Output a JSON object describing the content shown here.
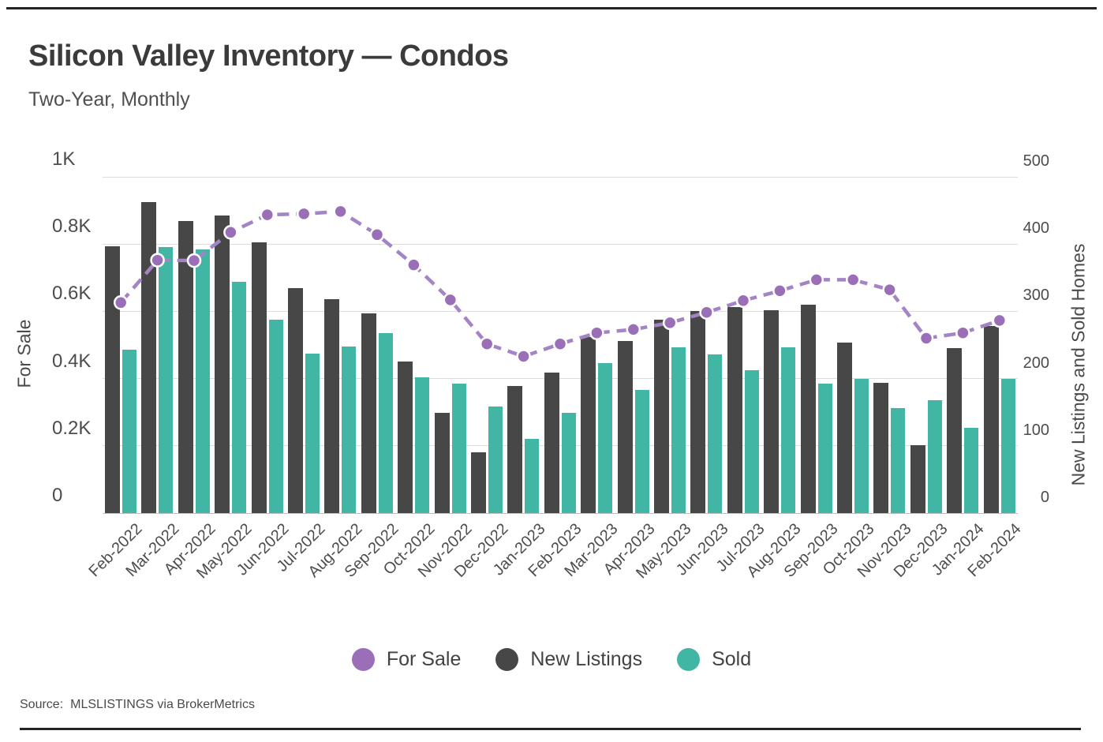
{
  "header": {
    "title": "Silicon Valley Inventory — Condos",
    "subtitle": "Two-Year, Monthly"
  },
  "source": {
    "label": "Source:",
    "text": "MLSLISTINGS via BrokerMetrics"
  },
  "colors": {
    "for_sale_marker": "#9a6fb8",
    "for_sale_line": "#a385c6",
    "new_listings_bar": "#474747",
    "sold_bar": "#42b6a5",
    "gridline": "#dcdcdc",
    "border_rule": "#232323"
  },
  "chart_data": {
    "type": "bar+line",
    "title": "Silicon Valley Inventory — Condos",
    "subtitle": "Two-Year, Monthly",
    "grid": true,
    "legend_position": "bottom",
    "categories": [
      "Feb-2022",
      "Mar-2022",
      "Apr-2022",
      "May-2022",
      "Jun-2022",
      "Jul-2022",
      "Aug-2022",
      "Sep-2022",
      "Oct-2022",
      "Nov-2022",
      "Dec-2022",
      "Jan-2023",
      "Feb-2023",
      "Mar-2023",
      "Apr-2023",
      "May-2023",
      "Jun-2023",
      "Jul-2023",
      "Aug-2023",
      "Sep-2023",
      "Oct-2023",
      "Nov-2023",
      "Dec-2023",
      "Jan-2024",
      "Feb-2024"
    ],
    "left_axis": {
      "title": "For Sale",
      "min": 0,
      "max": 1000,
      "ticks": [
        "0",
        "0.2K",
        "0.4K",
        "0.6K",
        "0.8K",
        "1K"
      ]
    },
    "right_axis": {
      "title": "New Listings and Sold Homes",
      "min": 0,
      "max": 500,
      "ticks": [
        "0",
        "100",
        "200",
        "300",
        "400",
        "500"
      ]
    },
    "series": [
      {
        "name": "For Sale",
        "type": "line",
        "axis": "left",
        "color": "#9a6fb8",
        "line_color": "#a385c6",
        "values": [
          626,
          752,
          751,
          835,
          887,
          890,
          897,
          828,
          738,
          634,
          503,
          466,
          503,
          536,
          546,
          566,
          597,
          632,
          661,
          694,
          694,
          664,
          520,
          536,
          573
        ]
      },
      {
        "name": "New Listings",
        "type": "bar",
        "axis": "right",
        "color": "#474747",
        "values": [
          397,
          462,
          434,
          443,
          403,
          335,
          318,
          297,
          225,
          149,
          90,
          189,
          209,
          262,
          256,
          287,
          301,
          306,
          302,
          310,
          253,
          194,
          101,
          245,
          278
        ]
      },
      {
        "name": "Sold",
        "type": "bar",
        "axis": "right",
        "color": "#42b6a5",
        "values": [
          243,
          396,
          392,
          344,
          288,
          237,
          248,
          268,
          202,
          192,
          158,
          110,
          149,
          223,
          183,
          246,
          236,
          212,
          246,
          192,
          200,
          156,
          168,
          127,
          200
        ]
      }
    ]
  }
}
